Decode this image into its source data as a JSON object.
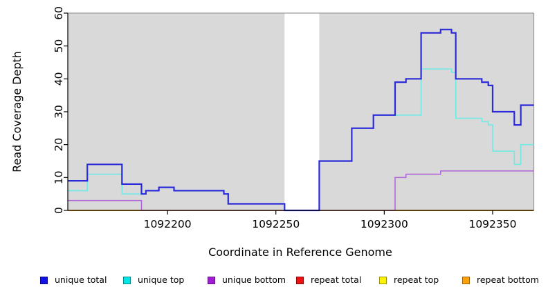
{
  "chart_data": {
    "type": "line",
    "subtype": "step",
    "title": "",
    "xlabel": "Coordinate in Reference Genome",
    "ylabel": "Read Coverage Depth",
    "xlim": [
      1092154,
      1092369
    ],
    "ylim": [
      0,
      60
    ],
    "x_ticks": [
      1092200,
      1092250,
      1092300,
      1092350
    ],
    "y_ticks": [
      0,
      10,
      20,
      30,
      40,
      50,
      60
    ],
    "grid": false,
    "plot_bg": "#d9d9d9",
    "axis_color": "#000000",
    "box_border_color": "#9b9b9b",
    "masked_region": {
      "x_start": 1092254,
      "x_end": 1092270,
      "color": "#ffffff"
    },
    "legend_position": "bottom",
    "series": [
      {
        "name": "repeat total",
        "key": "repeat_total",
        "color": "#e11414",
        "width": 1.4,
        "steps": [
          [
            1092154,
            1092369,
            0
          ]
        ]
      },
      {
        "name": "repeat top",
        "key": "repeat_top",
        "color": "#f7ef00",
        "width": 1.4,
        "steps": [
          [
            1092154,
            1092369,
            0
          ]
        ]
      },
      {
        "name": "repeat bottom",
        "key": "repeat_bottom",
        "color": "#ffa513",
        "width": 1.8,
        "steps": [
          [
            1092154,
            1092369,
            0
          ]
        ]
      },
      {
        "name": "unique bottom",
        "key": "unique_bottom",
        "color": "#b467d8",
        "width": 1.6,
        "steps": [
          [
            1092154,
            1092188,
            3
          ],
          [
            1092188,
            1092305,
            0
          ],
          [
            1092305,
            1092310,
            10
          ],
          [
            1092310,
            1092326,
            11
          ],
          [
            1092326,
            1092369,
            12
          ]
        ]
      },
      {
        "name": "unique top",
        "key": "unique_top",
        "color": "#72e9e5",
        "width": 1.6,
        "steps": [
          [
            1092154,
            1092163,
            6
          ],
          [
            1092163,
            1092179,
            11
          ],
          [
            1092179,
            1092190,
            5
          ],
          [
            1092190,
            1092196,
            6
          ],
          [
            1092196,
            1092203,
            7
          ],
          [
            1092203,
            1092226,
            6
          ],
          [
            1092226,
            1092228,
            5
          ],
          [
            1092228,
            1092254,
            2
          ],
          [
            1092254,
            1092270,
            0
          ],
          [
            1092270,
            1092285,
            15
          ],
          [
            1092285,
            1092295,
            25
          ],
          [
            1092295,
            1092317,
            29
          ],
          [
            1092317,
            1092331,
            43
          ],
          [
            1092331,
            1092333,
            42
          ],
          [
            1092333,
            1092345,
            28
          ],
          [
            1092345,
            1092348,
            27
          ],
          [
            1092348,
            1092350,
            26
          ],
          [
            1092350,
            1092360,
            18
          ],
          [
            1092360,
            1092363,
            14
          ],
          [
            1092363,
            1092369,
            20
          ]
        ]
      },
      {
        "name": "unique total",
        "key": "unique_total",
        "color": "#2b2bd9",
        "width": 2.2,
        "steps": [
          [
            1092154,
            1092163,
            9
          ],
          [
            1092163,
            1092179,
            14
          ],
          [
            1092179,
            1092188,
            8
          ],
          [
            1092188,
            1092190,
            5
          ],
          [
            1092190,
            1092196,
            6
          ],
          [
            1092196,
            1092203,
            7
          ],
          [
            1092203,
            1092226,
            6
          ],
          [
            1092226,
            1092228,
            5
          ],
          [
            1092228,
            1092254,
            2
          ],
          [
            1092254,
            1092270,
            0
          ],
          [
            1092270,
            1092285,
            15
          ],
          [
            1092285,
            1092295,
            25
          ],
          [
            1092295,
            1092305,
            29
          ],
          [
            1092305,
            1092310,
            39
          ],
          [
            1092310,
            1092317,
            40
          ],
          [
            1092317,
            1092326,
            54
          ],
          [
            1092326,
            1092331,
            55
          ],
          [
            1092331,
            1092333,
            54
          ],
          [
            1092333,
            1092345,
            40
          ],
          [
            1092345,
            1092348,
            39
          ],
          [
            1092348,
            1092350,
            38
          ],
          [
            1092350,
            1092360,
            30
          ],
          [
            1092360,
            1092363,
            26
          ],
          [
            1092363,
            1092369,
            32
          ]
        ]
      }
    ]
  },
  "legend": {
    "items": [
      {
        "label": "unique total",
        "color": "#1212e6"
      },
      {
        "label": "unique top",
        "color": "#00e6e6"
      },
      {
        "label": "unique bottom",
        "color": "#a21bd8"
      },
      {
        "label": "repeat total",
        "color": "#ee1111"
      },
      {
        "label": "repeat top",
        "color": "#fbf300"
      },
      {
        "label": "repeat bottom",
        "color": "#ffa00d"
      }
    ]
  }
}
